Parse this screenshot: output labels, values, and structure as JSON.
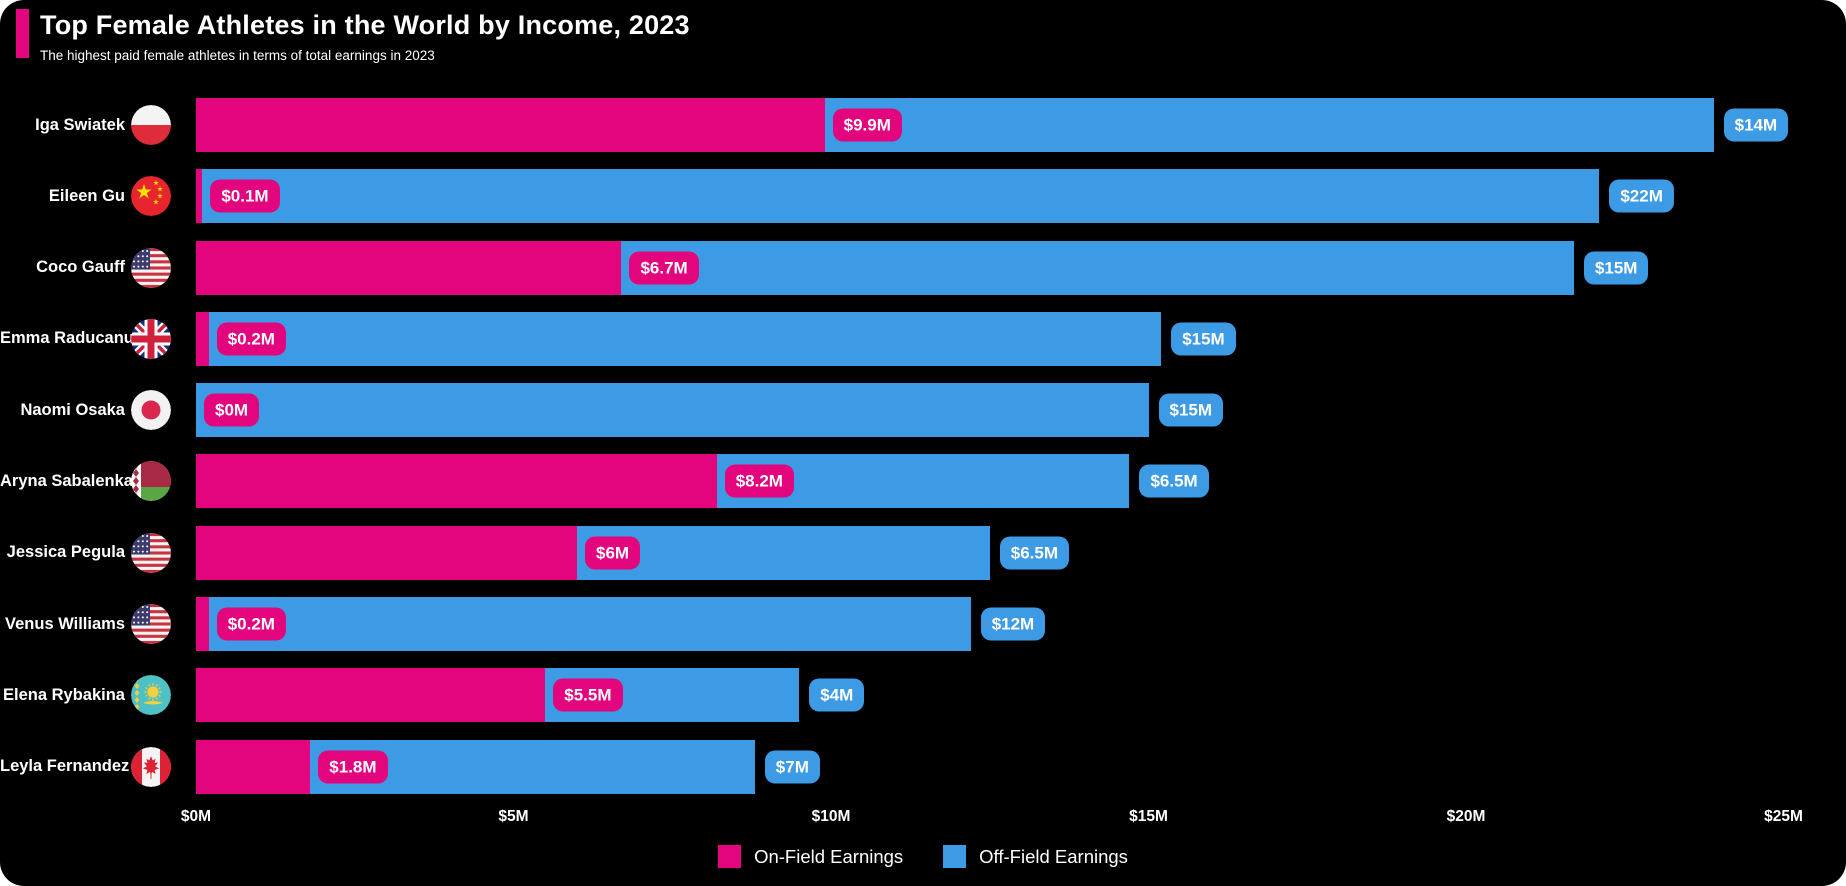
{
  "header": {
    "title": "Top Female Athletes in the World by Income, 2023",
    "subtitle": "The highest paid female athletes in terms of total earnings in 2023"
  },
  "colors": {
    "on_field": "#E2057E",
    "off_field": "#3D9BE5",
    "background": "#000000",
    "text": "#FFFFFF"
  },
  "chart_data": {
    "type": "bar",
    "orientation": "horizontal",
    "stacked": true,
    "title": "Top Female Athletes in the World by Income, 2023",
    "subtitle": "The highest paid female athletes in terms of total earnings in 2023",
    "unit": "USD millions",
    "xlim": [
      0,
      25
    ],
    "grid": false,
    "ticks": [
      {
        "label": "$0M",
        "value": 0
      },
      {
        "label": "$5M",
        "value": 5
      },
      {
        "label": "$10M",
        "value": 10
      },
      {
        "label": "$15M",
        "value": 15
      },
      {
        "label": "$20M",
        "value": 20
      },
      {
        "label": "$25M",
        "value": 25
      }
    ],
    "series_names": [
      "On-Field Earnings",
      "Off-Field Earnings"
    ],
    "athletes": [
      {
        "name": "Iga Swiatek",
        "country": "Poland",
        "flag": "poland",
        "on_field": 9.9,
        "off_field": 14,
        "on_label": "$9.9M",
        "off_label": "$14M"
      },
      {
        "name": "Eileen Gu",
        "country": "China",
        "flag": "china",
        "on_field": 0.1,
        "off_field": 22,
        "on_label": "$0.1M",
        "off_label": "$22M"
      },
      {
        "name": "Coco Gauff",
        "country": "United States",
        "flag": "usa",
        "on_field": 6.7,
        "off_field": 15,
        "on_label": "$6.7M",
        "off_label": "$15M"
      },
      {
        "name": "Emma Raducanu",
        "country": "United Kingdom",
        "flag": "uk",
        "on_field": 0.2,
        "off_field": 15,
        "on_label": "$0.2M",
        "off_label": "$15M"
      },
      {
        "name": "Naomi Osaka",
        "country": "Japan",
        "flag": "japan",
        "on_field": 0,
        "off_field": 15,
        "on_label": "$0M",
        "off_label": "$15M"
      },
      {
        "name": "Aryna Sabalenka",
        "country": "Belarus",
        "flag": "belarus",
        "on_field": 8.2,
        "off_field": 6.5,
        "on_label": "$8.2M",
        "off_label": "$6.5M"
      },
      {
        "name": "Jessica Pegula",
        "country": "United States",
        "flag": "usa",
        "on_field": 6,
        "off_field": 6.5,
        "on_label": "$6M",
        "off_label": "$6.5M"
      },
      {
        "name": "Venus Williams",
        "country": "United States",
        "flag": "usa",
        "on_field": 0.2,
        "off_field": 12,
        "on_label": "$0.2M",
        "off_label": "$12M"
      },
      {
        "name": "Elena Rybakina",
        "country": "Kazakhstan",
        "flag": "kazakhstan",
        "on_field": 5.5,
        "off_field": 4,
        "on_label": "$5.5M",
        "off_label": "$4M"
      },
      {
        "name": "Leyla Fernandez",
        "country": "Canada",
        "flag": "canada",
        "on_field": 1.8,
        "off_field": 7,
        "on_label": "$1.8M",
        "off_label": "$7M"
      }
    ],
    "legend": {
      "position": "bottom",
      "entries": [
        "On-Field Earnings",
        "Off-Field Earnings"
      ]
    }
  }
}
